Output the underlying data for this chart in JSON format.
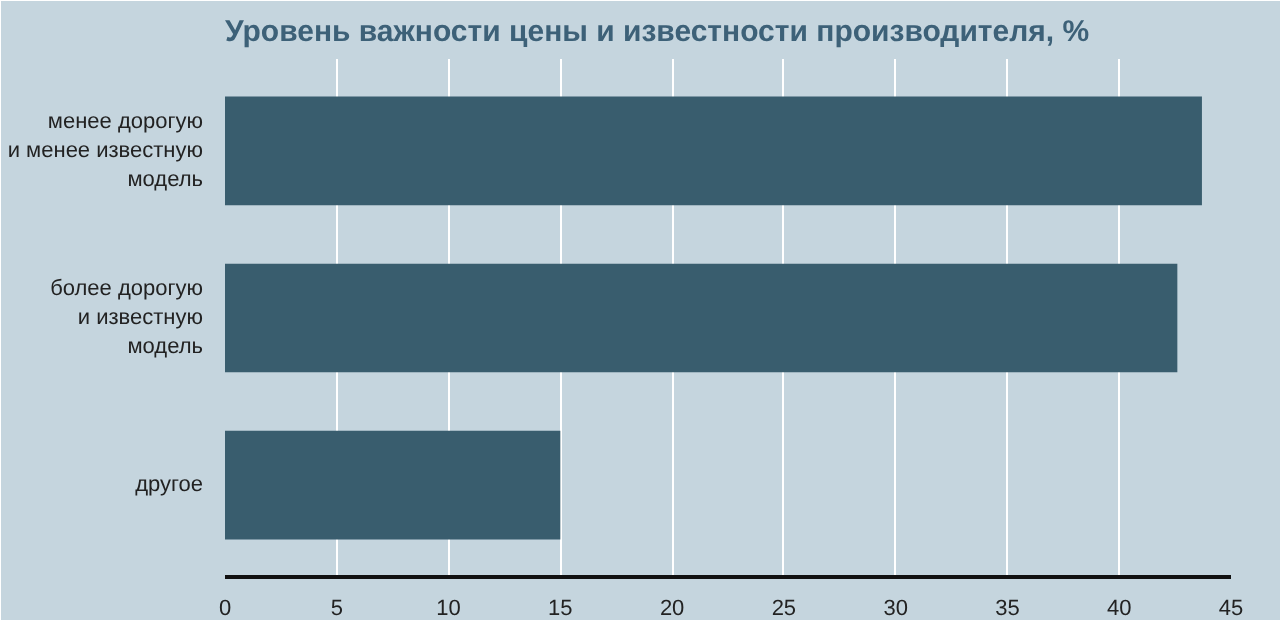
{
  "chart_data": {
    "type": "bar",
    "orientation": "horizontal",
    "title": "Уровень важности цены и известности производителя, %",
    "categories": [
      "менее дорогую\nи менее известную\nмодель",
      "более дорогую\nи известную\nмодель",
      "другое"
    ],
    "values": [
      43.7,
      42.6,
      15
    ],
    "color": "#395d6e",
    "xlim": [
      0,
      45
    ],
    "xticks": [
      0,
      5,
      10,
      15,
      20,
      25,
      30,
      35,
      40,
      45
    ],
    "grid": "x"
  }
}
